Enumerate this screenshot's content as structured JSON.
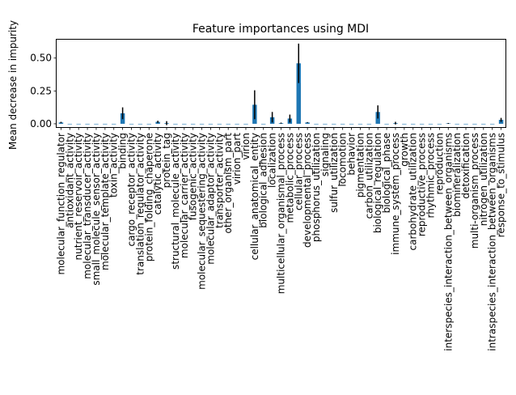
{
  "chart_data": {
    "type": "bar",
    "title": "Feature importances using MDI",
    "xlabel": "",
    "ylabel": "Mean decrease in impurity",
    "ylim": [
      -0.025,
      0.64
    ],
    "yticks": [
      0.0,
      0.25,
      0.5
    ],
    "ytick_labels": [
      "0.00",
      "0.25",
      "0.50"
    ],
    "grid": false,
    "legend": "none",
    "bar_color": "#1f77b4",
    "error_color": "#000000",
    "categories": [
      "molecular_function_regulator",
      "antioxidant_activity",
      "nutrient_reservoir_activity",
      "molecular_transducer_activity",
      "small_molecule_sensor_activity",
      "molecular_template_activity",
      "toxin_activity",
      "binding",
      "cargo_receptor_activity",
      "translation_regulator_activity",
      "protein_folding_chaperone",
      "catalytic_activity",
      "protein_tag",
      "structural_molecule_activity",
      "molecular_carrier_activity",
      "fusogenic_activity",
      "molecular_sequestering_activity",
      "molecular_adaptor_activity",
      "transporter_activity",
      "other_organism_part",
      "virion_part",
      "virion",
      "cellular_anatomical_entity",
      "biological_adhesion",
      "localization",
      "multicellular_organismal_process",
      "metabolic_process",
      "cellular_process",
      "developmental_process",
      "phosphorus_utilization",
      "signaling",
      "sulfur_utilization",
      "locomotion",
      "behavior",
      "pigmentation",
      "carbon_utilization",
      "biological_regulation",
      "biological_phase",
      "immune_system_process",
      "growth",
      "carbohydrate_utilization",
      "reproductive_process",
      "rhythmic_process",
      "reproduction",
      "interspecies_interaction_between_organisms",
      "biomineralization",
      "detoxification",
      "multi-organism_process",
      "nitrogen_utilization",
      "intraspecies_interaction_between_organisms",
      "response_to_stimulus"
    ],
    "values": [
      0.01,
      0,
      0,
      0,
      0,
      0,
      0,
      0.08,
      0,
      0,
      0,
      0.015,
      0.005,
      0,
      0,
      0,
      0,
      0,
      0,
      0,
      0,
      0,
      0.145,
      0,
      0.05,
      0.005,
      0.04,
      0.46,
      0.01,
      0,
      0,
      0,
      0,
      0,
      0,
      0,
      0.09,
      0,
      0.005,
      0,
      0,
      0,
      0,
      0,
      0.003,
      0,
      0,
      0,
      0,
      0,
      0.03
    ],
    "errors": [
      0.005,
      0,
      0,
      0,
      0,
      0,
      0,
      0.045,
      0,
      0,
      0,
      0.008,
      0.015,
      0,
      0,
      0,
      0,
      0,
      0,
      0,
      0,
      0,
      0.11,
      0,
      0.04,
      0.004,
      0.03,
      0.15,
      0.003,
      0,
      0,
      0,
      0,
      0,
      0,
      0,
      0.05,
      0,
      0.01,
      0,
      0,
      0,
      0,
      0,
      0.003,
      0,
      0,
      0,
      0,
      0,
      0.015
    ]
  }
}
